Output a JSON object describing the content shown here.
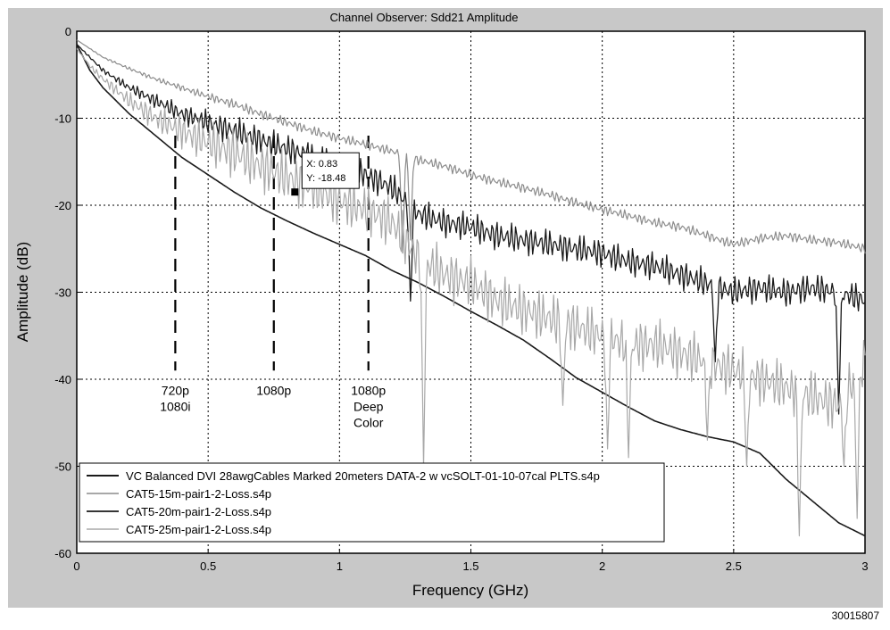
{
  "figure_id": "30015807",
  "chart_data": {
    "type": "line",
    "title": "Channel Observer: Sdd21 Amplitude",
    "xlabel": "Frequency (GHz)",
    "ylabel": "Amplitude (dB)",
    "xlim": [
      0,
      3
    ],
    "ylim": [
      -60,
      0
    ],
    "xticks": [
      0,
      0.5,
      1,
      1.5,
      2,
      2.5,
      3
    ],
    "xtick_labels": [
      "0",
      "0.5",
      "1",
      "1.5",
      "2",
      "2.5",
      "3"
    ],
    "yticks": [
      0,
      -10,
      -20,
      -30,
      -40,
      -50,
      -60
    ],
    "ytick_labels": [
      "0",
      "-10",
      "-20",
      "-30",
      "-40",
      "-50",
      "-60"
    ],
    "grid": true,
    "legend_position": "lower-left",
    "colors": {
      "plot_bg": "#ffffff",
      "figure_bg": "#c8c8c8",
      "dark": "#1a1a1a",
      "gray": "#8c8c8c",
      "light_gray": "#a8a8a8"
    },
    "markers": [
      {
        "x": 0.375,
        "lines": [
          "720p",
          "1080i"
        ]
      },
      {
        "x": 0.75,
        "lines": [
          "1080p"
        ]
      },
      {
        "x": 1.11,
        "lines": [
          "1080p",
          "Deep",
          "Color"
        ]
      }
    ],
    "datatip": {
      "x": 0.83,
      "y": -18.48,
      "x_text": "X: 0.83",
      "y_text": "Y: -18.48"
    },
    "series": [
      {
        "name": "VC Balanced DVI 28awgCables Marked 20meters DATA-2 w vcSOLT-01-10-07cal PLTS.s4p",
        "color": "#1a1a1a",
        "width": 1.6,
        "noise": 0,
        "x": [
          0,
          0.05,
          0.1,
          0.2,
          0.3,
          0.4,
          0.5,
          0.6,
          0.7,
          0.8,
          0.9,
          1.0,
          1.1,
          1.2,
          1.3,
          1.4,
          1.5,
          1.6,
          1.7,
          1.8,
          1.9,
          2.0,
          2.1,
          2.2,
          2.3,
          2.4,
          2.5,
          2.6,
          2.7,
          2.8,
          2.9,
          3.0
        ],
        "y": [
          -1.5,
          -4.5,
          -6.5,
          -9.5,
          -12,
          -14.5,
          -16.5,
          -18.5,
          -20.3,
          -21.8,
          -23.2,
          -24.5,
          -25.8,
          -27.5,
          -28.9,
          -30.5,
          -32.2,
          -33.8,
          -35.5,
          -37.6,
          -39.8,
          -41.5,
          -43.2,
          -44.8,
          -45.8,
          -46.6,
          -47.2,
          -48.5,
          -51.5,
          -54,
          -56.5,
          -58
        ]
      },
      {
        "name": "CAT5-15m-pair1-2-Loss.s4p",
        "color": "#8c8c8c",
        "width": 1.2,
        "noise": 0.6,
        "x": [
          0,
          0.05,
          0.1,
          0.2,
          0.3,
          0.4,
          0.5,
          0.6,
          0.7,
          0.8,
          0.9,
          1.0,
          1.1,
          1.2,
          1.3,
          1.4,
          1.5,
          1.6,
          1.7,
          1.8,
          1.9,
          2.0,
          2.1,
          2.2,
          2.3,
          2.4,
          2.5,
          2.6,
          2.7,
          2.8,
          2.9,
          3.0
        ],
        "y": [
          -1,
          -2,
          -3,
          -4.3,
          -5.5,
          -6.5,
          -7.5,
          -8.4,
          -9.5,
          -10.5,
          -11.5,
          -12.3,
          -13,
          -13.8,
          -14.8,
          -15.5,
          -16.5,
          -17.3,
          -18,
          -18.8,
          -19.7,
          -20.5,
          -21.2,
          -22,
          -22.5,
          -23.5,
          -24.5,
          -23.8,
          -23.5,
          -24,
          -24.3,
          -25
        ]
      },
      {
        "name": "CAT5-20m-pair1-2-Loss.s4p",
        "color": "#1a1a1a",
        "width": 1.3,
        "noise": 1.8,
        "x": [
          0,
          0.05,
          0.1,
          0.2,
          0.3,
          0.4,
          0.5,
          0.6,
          0.7,
          0.8,
          0.9,
          1.0,
          1.1,
          1.2,
          1.3,
          1.4,
          1.5,
          1.6,
          1.7,
          1.8,
          1.9,
          2.0,
          2.1,
          2.2,
          2.3,
          2.4,
          2.5,
          2.6,
          2.7,
          2.8,
          2.9,
          3.0
        ],
        "y": [
          -1.5,
          -3,
          -4.5,
          -6.5,
          -8,
          -9.5,
          -10.5,
          -11.5,
          -12.5,
          -13.5,
          -14.5,
          -15.5,
          -16.5,
          -18,
          -21,
          -22,
          -22.5,
          -23.5,
          -24,
          -24.5,
          -25,
          -25.5,
          -26.5,
          -27,
          -28,
          -29,
          -30,
          -29.5,
          -30,
          -29.5,
          -30,
          -31
        ]
      },
      {
        "name": "CAT5-25m-pair1-2-Loss.s4p",
        "color": "#a8a8a8",
        "width": 1.2,
        "noise": 3.2,
        "x": [
          0,
          0.05,
          0.1,
          0.2,
          0.3,
          0.4,
          0.5,
          0.6,
          0.7,
          0.8,
          0.9,
          1.0,
          1.1,
          1.2,
          1.3,
          1.4,
          1.5,
          1.6,
          1.7,
          1.8,
          1.9,
          2.0,
          2.1,
          2.2,
          2.3,
          2.4,
          2.5,
          2.6,
          2.7,
          2.8,
          2.9,
          3.0
        ],
        "y": [
          -2,
          -4,
          -5.5,
          -8,
          -10,
          -11.5,
          -12.8,
          -14,
          -15.5,
          -16.8,
          -18,
          -19.5,
          -20.5,
          -22,
          -26,
          -28,
          -29,
          -31,
          -32,
          -33,
          -34,
          -35,
          -36,
          -36,
          -37,
          -38,
          -39,
          -40,
          -41,
          -42,
          -43,
          -38
        ]
      }
    ],
    "dips": [
      {
        "series": 3,
        "x": [
          1.32,
          1.85,
          2.02,
          2.1,
          2.4,
          2.55,
          2.75,
          2.92,
          2.97
        ],
        "y": [
          -50,
          -43,
          -48,
          -49,
          -47,
          -50,
          -58,
          -50,
          -56
        ]
      },
      {
        "series": 2,
        "x": [
          1.27,
          2.43,
          2.9
        ],
        "y": [
          -31,
          -38,
          -44
        ]
      },
      {
        "series": 1,
        "x": [
          1.24,
          1.27
        ],
        "y": [
          -25.5,
          -24
        ]
      }
    ]
  }
}
